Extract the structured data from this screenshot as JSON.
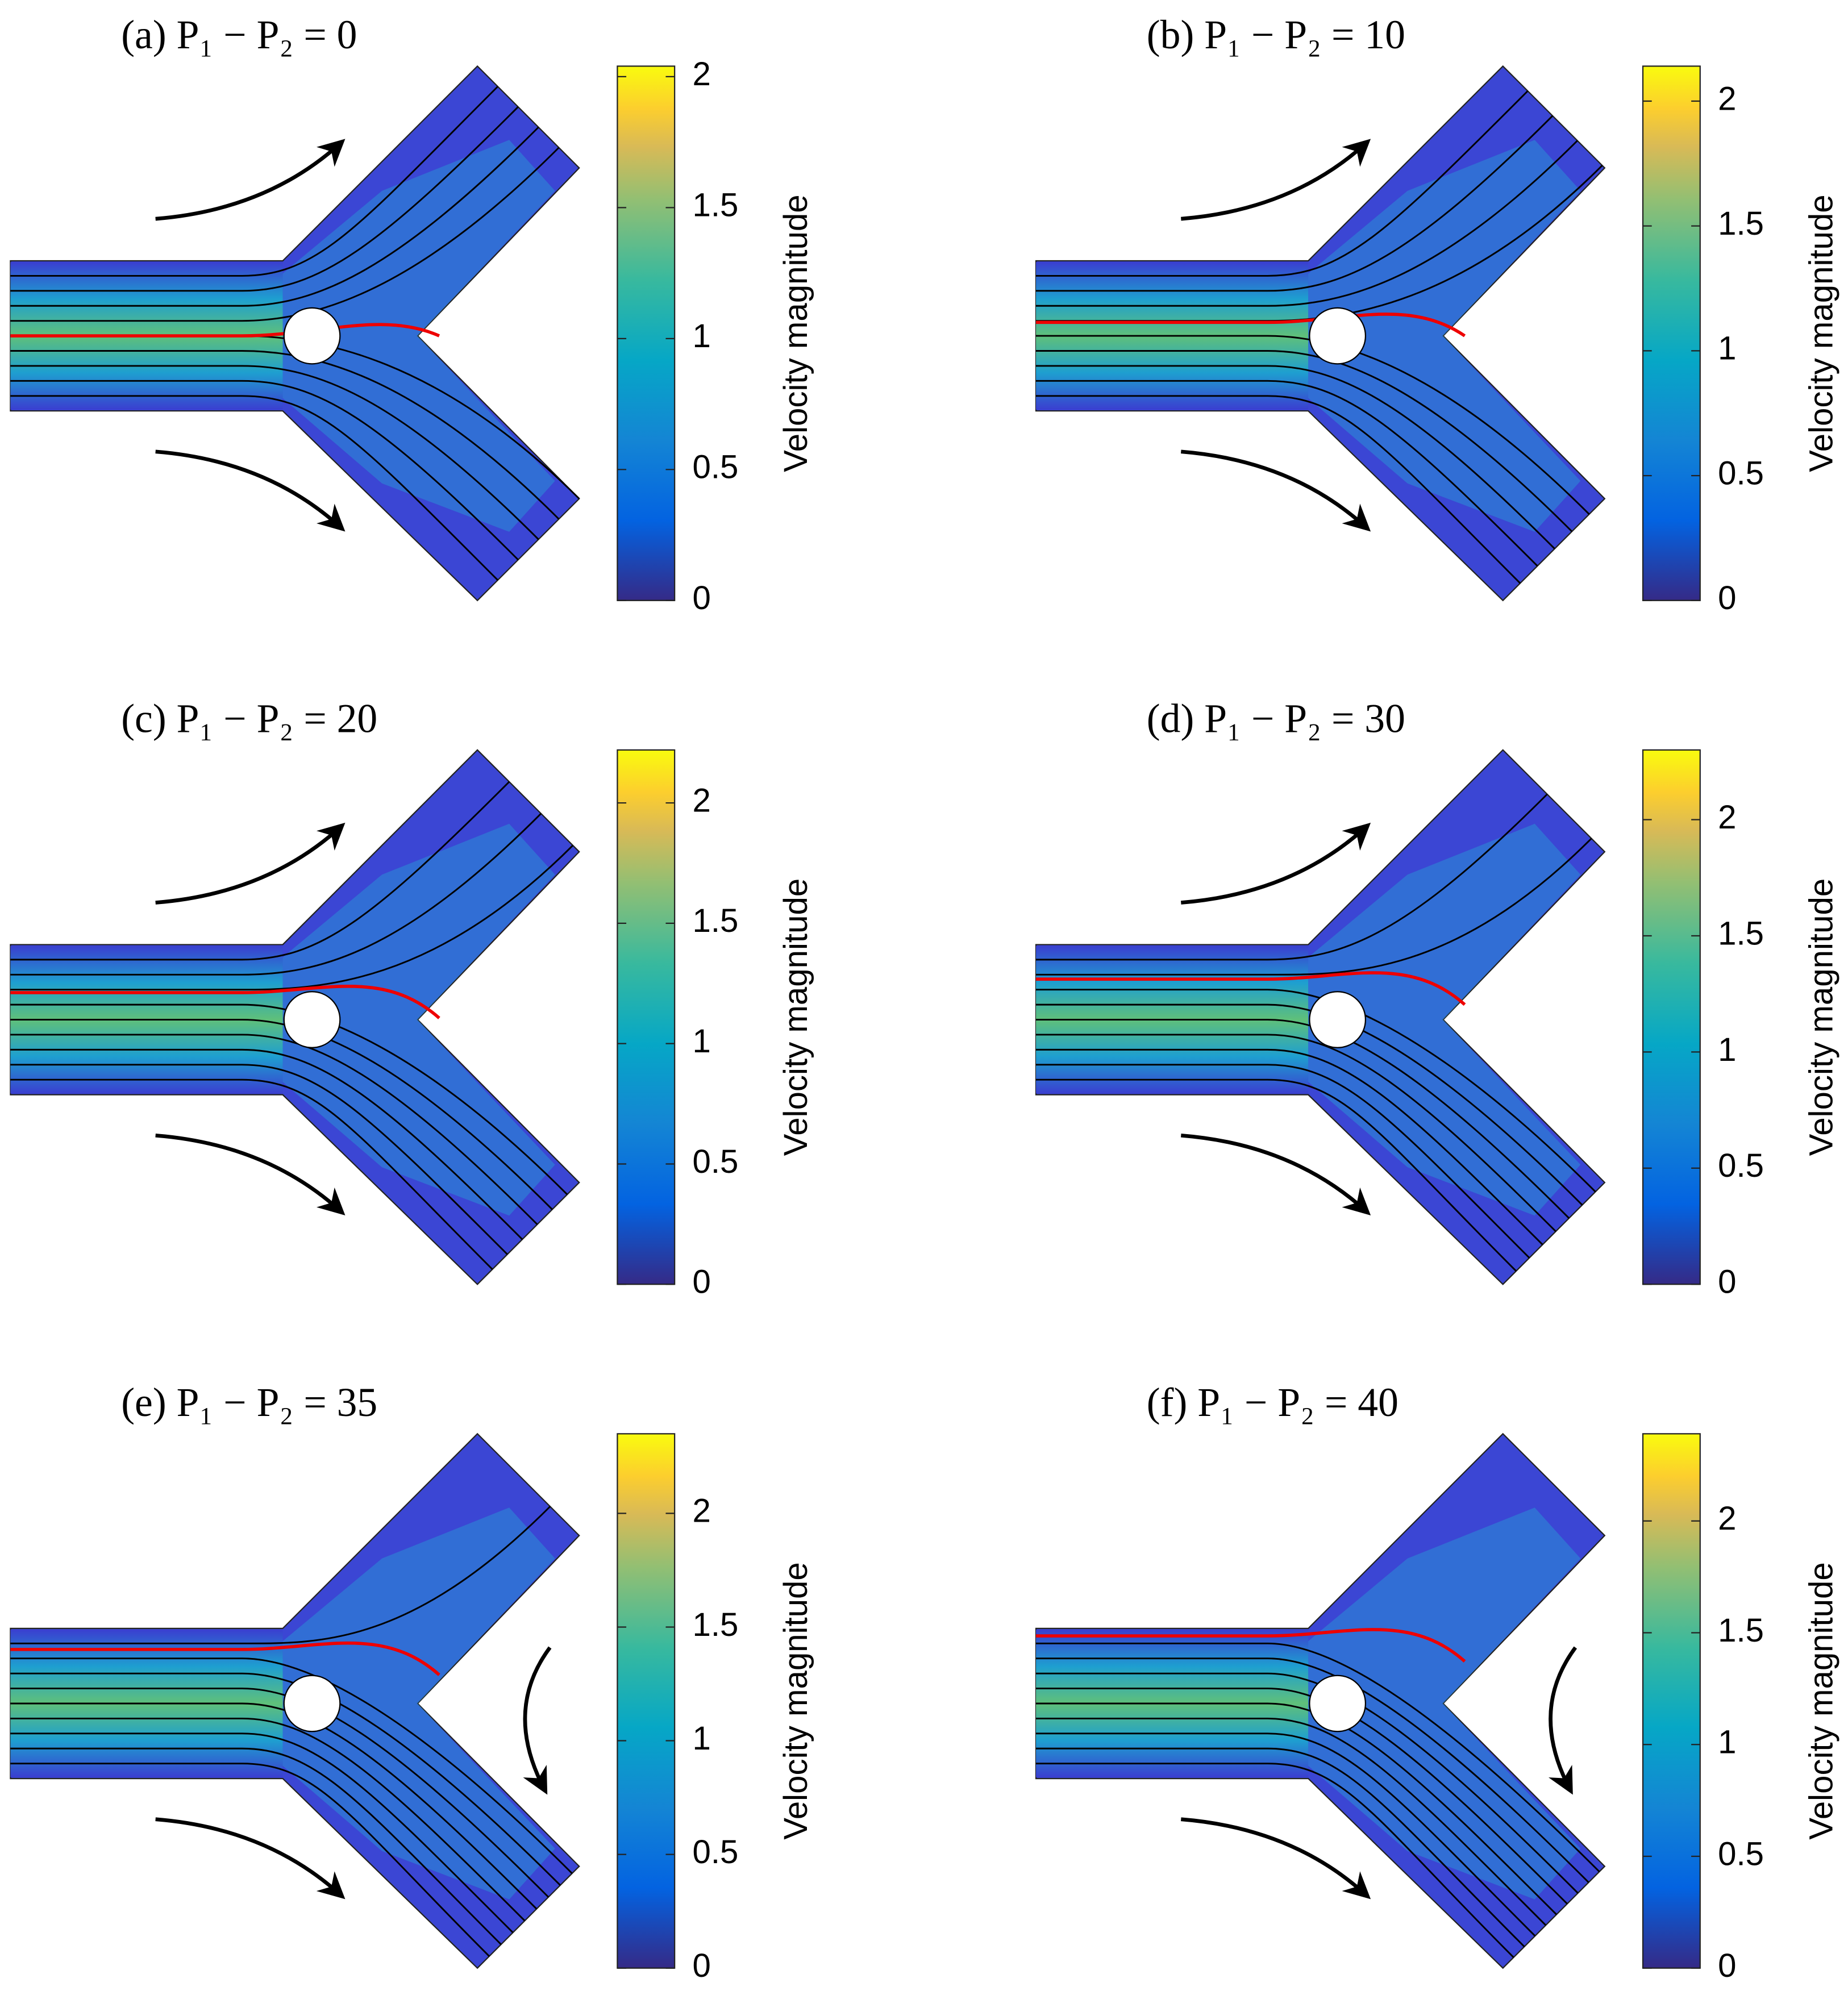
{
  "chart_data": [
    {
      "type": "field",
      "title": "(a) P₁ − P₂ = 0",
      "colorbar": {
        "label": "Velocity magnitude",
        "clim": [
          0,
          2.04
        ],
        "ticks": [
          0,
          0.5,
          1,
          1.5,
          2
        ]
      }
    },
    {
      "type": "field",
      "title": "(b) P₁ − P₂ = 10",
      "colorbar": {
        "label": "Velocity magnitude",
        "clim": [
          0,
          2.14
        ],
        "ticks": [
          0,
          0.5,
          1,
          1.5,
          2
        ]
      }
    },
    {
      "type": "field",
      "title": "(c) P₁ − P₂ = 20",
      "colorbar": {
        "label": "Velocity magnitude",
        "clim": [
          0,
          2.22
        ],
        "ticks": [
          0,
          0.5,
          1,
          1.5,
          2
        ]
      }
    },
    {
      "type": "field",
      "title": "(d) P₁ − P₂ = 30",
      "colorbar": {
        "label": "Velocity magnitude",
        "clim": [
          0,
          2.3
        ],
        "ticks": [
          0,
          0.5,
          1,
          1.5,
          2
        ]
      }
    },
    {
      "type": "field",
      "title": "(e) P₁ − P₂ = 35",
      "colorbar": {
        "label": "Velocity magnitude",
        "clim": [
          0,
          2.35
        ],
        "ticks": [
          0,
          0.5,
          1,
          1.5,
          2
        ]
      }
    },
    {
      "type": "field",
      "title": "(f) P₁ − P₂ = 40",
      "colorbar": {
        "label": "Velocity magnitude",
        "clim": [
          0,
          2.39
        ],
        "ticks": [
          0,
          0.5,
          1,
          1.5,
          2
        ]
      }
    }
  ]
}
